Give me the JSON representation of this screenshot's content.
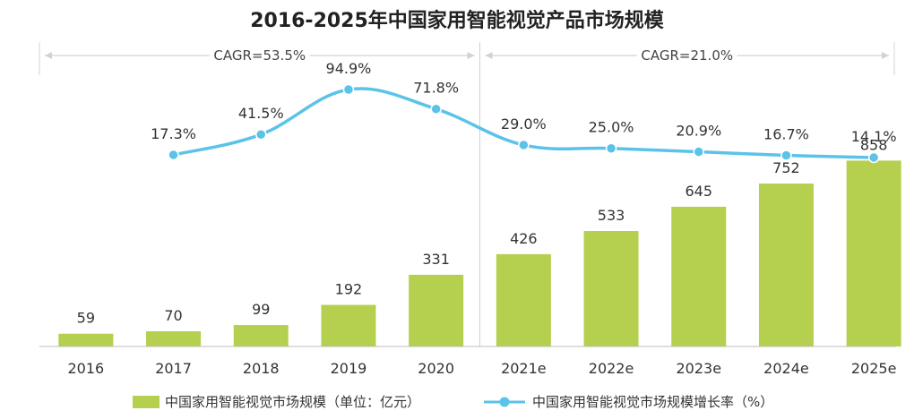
{
  "chart_data": {
    "type": "bar+line",
    "title": "2016-2025年中国家用智能视觉产品市场规模",
    "categories": [
      "2016",
      "2017",
      "2018",
      "2019",
      "2020",
      "2021e",
      "2022e",
      "2023e",
      "2024e",
      "2025e"
    ],
    "series": [
      {
        "name": "中国家用智能视觉市场规模（单位：亿元）",
        "kind": "bar",
        "color": "#b5cf4f",
        "values": [
          59,
          70,
          99,
          192,
          331,
          426,
          533,
          645,
          752,
          858
        ],
        "labels": [
          "59",
          "70",
          "99",
          "192",
          "331",
          "426",
          "533",
          "645",
          "752",
          "858"
        ]
      },
      {
        "name": "中国家用智能视觉市场规模增长率（%）",
        "kind": "line",
        "color": "#5bc3e8",
        "values": [
          null,
          17.3,
          41.5,
          94.9,
          71.8,
          29.0,
          25.0,
          20.9,
          16.7,
          14.1
        ],
        "labels": [
          "",
          "17.3%",
          "41.5%",
          "94.9%",
          "71.8%",
          "29.0%",
          "25.0%",
          "20.9%",
          "16.7%",
          "14.1%"
        ]
      }
    ],
    "cagr": [
      {
        "label": "CAGR=53.5%",
        "from": "2016",
        "to": "2020"
      },
      {
        "label": "CAGR=21.0%",
        "from": "2021e",
        "to": "2025e"
      }
    ],
    "divider_after": "2020",
    "legend_position": "bottom"
  }
}
